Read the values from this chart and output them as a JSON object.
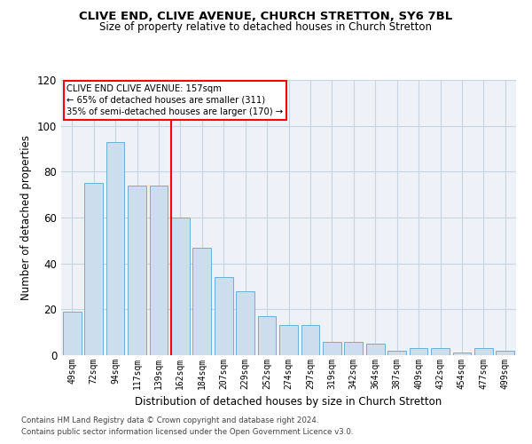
{
  "title1": "CLIVE END, CLIVE AVENUE, CHURCH STRETTON, SY6 7BL",
  "title2": "Size of property relative to detached houses in Church Stretton",
  "xlabel": "Distribution of detached houses by size in Church Stretton",
  "ylabel": "Number of detached properties",
  "categories": [
    "49sqm",
    "72sqm",
    "94sqm",
    "117sqm",
    "139sqm",
    "162sqm",
    "184sqm",
    "207sqm",
    "229sqm",
    "252sqm",
    "274sqm",
    "297sqm",
    "319sqm",
    "342sqm",
    "364sqm",
    "387sqm",
    "409sqm",
    "432sqm",
    "454sqm",
    "477sqm",
    "499sqm"
  ],
  "values": [
    19,
    75,
    93,
    74,
    74,
    60,
    47,
    34,
    28,
    17,
    13,
    13,
    6,
    6,
    5,
    2,
    3,
    3,
    1,
    3,
    2
  ],
  "bar_color": "#ccdded",
  "bar_edge_color": "#6aaed6",
  "vline_color": "red",
  "annotation_title": "CLIVE END CLIVE AVENUE: 157sqm",
  "annotation_line1": "← 65% of detached houses are smaller (311)",
  "annotation_line2": "35% of semi-detached houses are larger (170) →",
  "ylim": [
    0,
    120
  ],
  "yticks": [
    0,
    20,
    40,
    60,
    80,
    100,
    120
  ],
  "footer1": "Contains HM Land Registry data © Crown copyright and database right 2024.",
  "footer2": "Contains public sector information licensed under the Open Government Licence v3.0.",
  "bg_color": "#eef2f8",
  "grid_color": "#c8d4e0"
}
